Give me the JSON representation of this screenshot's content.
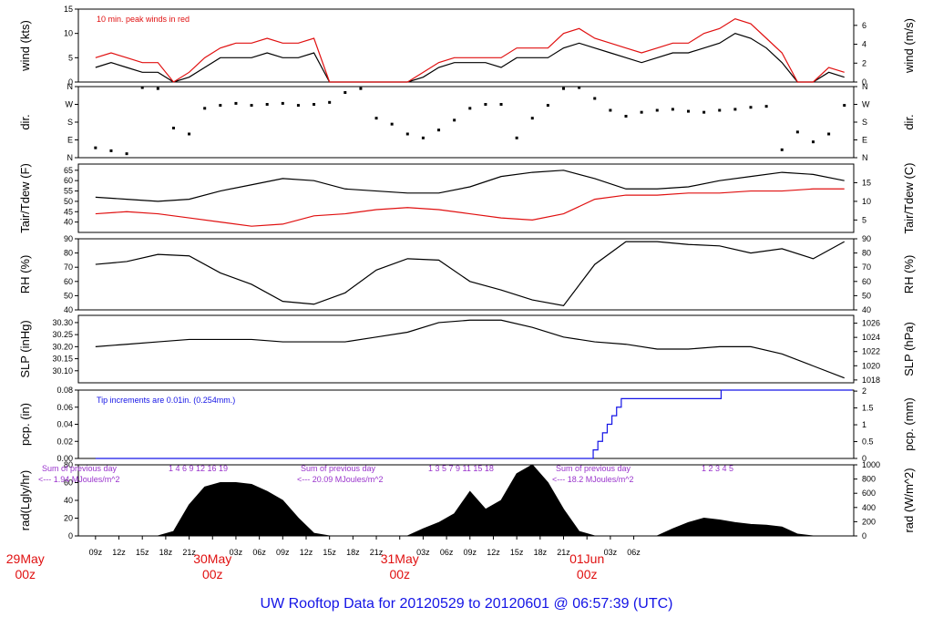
{
  "title": "UW Rooftop Data for 20120529  to  20120601 @ 06:57:39  (UTC)",
  "colors": {
    "black": "#000000",
    "red": "#e01010",
    "blue": "#1414e6",
    "purple": "#9933cc"
  },
  "x_hour_labels": [
    "09z",
    "12z",
    "15z",
    "18z",
    "21z",
    "30May",
    "03z",
    "06z",
    "09z",
    "12z",
    "15z",
    "18z",
    "21z",
    "31May",
    "03z",
    "06z",
    "09z",
    "12z",
    "15z",
    "18z",
    "21z",
    "01Jun",
    "03z",
    "06z"
  ],
  "day_labels": [
    {
      "name": "29May",
      "time": "00z"
    },
    {
      "name": "30May",
      "time": "00z"
    },
    {
      "name": "31May",
      "time": "00z"
    },
    {
      "name": "01Jun",
      "time": "00z"
    }
  ],
  "chart_data": [
    {
      "type": "line",
      "panel": "wind",
      "ylabel": "wind (kts)",
      "ylabel_right": "wind (m/s)",
      "ylim": [
        0,
        15
      ],
      "yticks": [
        0,
        5,
        10,
        15
      ],
      "ylim_right": [
        0,
        7.72
      ],
      "yticks_right": [
        0,
        2,
        4,
        6
      ],
      "annotation": "10 min. peak winds in red",
      "series": [
        {
          "name": "wind",
          "color": "#000000",
          "x": [
            0,
            2,
            4,
            6,
            8,
            10,
            12,
            14,
            16,
            18,
            20,
            22,
            24,
            26,
            28,
            30,
            32,
            34,
            36,
            38,
            40,
            42,
            44,
            46,
            48,
            50,
            52,
            54,
            56,
            58,
            60,
            62,
            64,
            66,
            68,
            70,
            72,
            74,
            76,
            78,
            80,
            82,
            84,
            86,
            88,
            90,
            92,
            94,
            96
          ],
          "y": [
            3,
            4,
            3,
            2,
            2,
            0,
            1,
            3,
            5,
            5,
            5,
            6,
            5,
            5,
            6,
            0,
            0,
            0,
            0,
            0,
            0,
            1,
            3,
            4,
            4,
            4,
            3,
            5,
            5,
            5,
            7,
            8,
            7,
            6,
            5,
            4,
            5,
            6,
            6,
            7,
            8,
            10,
            9,
            7,
            4,
            0,
            0,
            2,
            1
          ]
        },
        {
          "name": "peak",
          "color": "#e01010",
          "x": [
            0,
            2,
            4,
            6,
            8,
            10,
            12,
            14,
            16,
            18,
            20,
            22,
            24,
            26,
            28,
            30,
            32,
            34,
            36,
            38,
            40,
            42,
            44,
            46,
            48,
            50,
            52,
            54,
            56,
            58,
            60,
            62,
            64,
            66,
            68,
            70,
            72,
            74,
            76,
            78,
            80,
            82,
            84,
            86,
            88,
            90,
            92,
            94,
            96
          ],
          "y": [
            5,
            6,
            5,
            4,
            4,
            0,
            2,
            5,
            7,
            8,
            8,
            9,
            8,
            8,
            9,
            0,
            0,
            0,
            0,
            0,
            0,
            2,
            4,
            5,
            5,
            5,
            5,
            7,
            7,
            7,
            10,
            11,
            9,
            8,
            7,
            6,
            7,
            8,
            8,
            10,
            11,
            13,
            12,
            9,
            6,
            0,
            0,
            3,
            2
          ]
        }
      ]
    },
    {
      "type": "scatter",
      "panel": "dir",
      "ylabel": "dir.",
      "ylim": [
        0,
        360
      ],
      "yticklabels": [
        "N",
        "E",
        "S",
        "W",
        "N"
      ],
      "ytickvalues": [
        0,
        90,
        180,
        270,
        360
      ],
      "series": [
        {
          "name": "dir",
          "color": "#000000",
          "x": [
            0,
            2,
            4,
            6,
            8,
            10,
            12,
            14,
            16,
            18,
            20,
            22,
            24,
            26,
            28,
            30,
            32,
            34,
            36,
            38,
            40,
            42,
            44,
            46,
            48,
            50,
            52,
            54,
            56,
            58,
            60,
            62,
            64,
            66,
            68,
            70,
            72,
            74,
            76,
            78,
            80,
            82,
            84,
            86,
            88,
            90,
            92,
            94,
            96
          ],
          "y": [
            50,
            35,
            20,
            355,
            350,
            150,
            120,
            250,
            265,
            275,
            265,
            270,
            275,
            265,
            270,
            280,
            330,
            350,
            200,
            170,
            120,
            100,
            140,
            190,
            250,
            270,
            270,
            100,
            200,
            265,
            350,
            355,
            300,
            240,
            210,
            230,
            240,
            245,
            235,
            230,
            240,
            245,
            255,
            260,
            40,
            130,
            80,
            120,
            265
          ]
        }
      ]
    },
    {
      "type": "line",
      "panel": "temp",
      "ylabel": "Tair/Tdew (F)",
      "ylabel_right": "Tair/Tdew (C)",
      "ylim": [
        35,
        68
      ],
      "yticks": [
        40,
        45,
        50,
        55,
        60,
        65
      ],
      "ylim_right": [
        1.67,
        20
      ],
      "yticks_right": [
        5,
        10,
        15
      ],
      "series": [
        {
          "name": "Tair",
          "color": "#000000",
          "x": [
            0,
            4,
            8,
            12,
            16,
            20,
            24,
            28,
            32,
            36,
            40,
            44,
            48,
            52,
            56,
            60,
            64,
            68,
            72,
            76,
            80,
            84,
            88,
            92,
            96
          ],
          "y": [
            52,
            51,
            50,
            51,
            55,
            58,
            61,
            60,
            56,
            55,
            54,
            54,
            57,
            62,
            64,
            65,
            61,
            56,
            56,
            57,
            60,
            62,
            64,
            63,
            60
          ]
        },
        {
          "name": "Tdew",
          "color": "#e01010",
          "x": [
            0,
            4,
            8,
            12,
            16,
            20,
            24,
            28,
            32,
            36,
            40,
            44,
            48,
            52,
            56,
            60,
            64,
            68,
            72,
            76,
            80,
            84,
            88,
            92,
            96
          ],
          "y": [
            44,
            45,
            44,
            42,
            40,
            38,
            39,
            43,
            44,
            46,
            47,
            46,
            44,
            42,
            41,
            44,
            51,
            53,
            53,
            54,
            54,
            55,
            55,
            56,
            56
          ]
        }
      ]
    },
    {
      "type": "line",
      "panel": "rh",
      "ylabel": "RH (%)",
      "ylabel_right": "RH (%)",
      "ylim": [
        40,
        90
      ],
      "yticks": [
        40,
        50,
        60,
        70,
        80,
        90
      ],
      "ylim_right": [
        40,
        90
      ],
      "yticks_right": [
        40,
        50,
        60,
        70,
        80,
        90
      ],
      "series": [
        {
          "name": "RH",
          "color": "#000000",
          "x": [
            0,
            4,
            8,
            12,
            16,
            20,
            24,
            28,
            32,
            36,
            40,
            44,
            48,
            52,
            56,
            60,
            64,
            68,
            72,
            76,
            80,
            84,
            88,
            92,
            96
          ],
          "y": [
            72,
            74,
            79,
            78,
            66,
            58,
            46,
            44,
            52,
            68,
            76,
            75,
            60,
            54,
            47,
            43,
            72,
            88,
            88,
            86,
            85,
            80,
            83,
            76,
            88
          ]
        }
      ]
    },
    {
      "type": "line",
      "panel": "slp",
      "ylabel": "SLP (inHg)",
      "ylabel_right": "SLP (hPa)",
      "ylim": [
        30.05,
        30.33
      ],
      "yticks": [
        30.1,
        30.15,
        30.2,
        30.25,
        30.3
      ],
      "yticklabels": [
        "30.10",
        "30.15",
        "30.20",
        "30.25",
        "30.30"
      ],
      "ylim_right": [
        1017.6,
        1027.1
      ],
      "yticks_right": [
        1018,
        1020,
        1022,
        1024,
        1026
      ],
      "series": [
        {
          "name": "SLP",
          "color": "#000000",
          "x": [
            0,
            4,
            8,
            12,
            16,
            20,
            24,
            28,
            32,
            36,
            40,
            44,
            48,
            52,
            56,
            60,
            64,
            68,
            72,
            76,
            80,
            84,
            88,
            92,
            96
          ],
          "y": [
            30.2,
            30.21,
            30.22,
            30.23,
            30.23,
            30.23,
            30.22,
            30.22,
            30.22,
            30.24,
            30.26,
            30.3,
            30.31,
            30.31,
            30.28,
            30.24,
            30.22,
            30.21,
            30.19,
            30.19,
            30.2,
            30.2,
            30.17,
            30.12,
            30.07
          ]
        }
      ]
    },
    {
      "type": "line",
      "panel": "pcp",
      "ylabel": "pcp. (in)",
      "ylabel_right": "pcp. (mm)",
      "ylim": [
        0,
        0.08
      ],
      "yticks": [
        0,
        0.02,
        0.04,
        0.06,
        0.08
      ],
      "yticklabels": [
        "0.00",
        "0.02",
        "0.04",
        "0.06",
        "0.08"
      ],
      "ylim_right": [
        0,
        2.03
      ],
      "yticks_right": [
        0,
        0.5,
        1,
        1.5,
        2
      ],
      "annotation": "Tip increments are 0.01in. (0.254mm.)",
      "series": [
        {
          "name": "pcp",
          "color": "#1414e6",
          "x": [
            0,
            63,
            63.8,
            64.4,
            65.0,
            65.6,
            66.2,
            66.8,
            67.4,
            80,
            80.2,
            97
          ],
          "y": [
            0,
            0,
            0.01,
            0.02,
            0.03,
            0.04,
            0.05,
            0.06,
            0.07,
            0.07,
            0.08,
            0.08
          ]
        }
      ]
    },
    {
      "type": "area",
      "panel": "rad",
      "ylabel": "rad(Lgly/hr)",
      "ylabel_right": "rad (W/m^2)",
      "ylim": [
        0,
        80
      ],
      "yticks": [
        0,
        20,
        40,
        60,
        80
      ],
      "ylim_right": [
        0,
        1000
      ],
      "yticks_right": [
        0,
        200,
        400,
        600,
        800,
        1000
      ],
      "series": [
        {
          "name": "rad",
          "color": "#000000",
          "x": [
            0,
            2,
            4,
            6,
            8,
            10,
            12,
            14,
            16,
            18,
            20,
            22,
            24,
            26,
            28,
            30,
            32,
            34,
            36,
            38,
            40,
            42,
            44,
            46,
            48,
            50,
            52,
            54,
            56,
            58,
            60,
            62,
            64,
            66,
            68,
            70,
            72,
            74,
            76,
            78,
            80,
            82,
            84,
            86,
            88,
            90,
            92,
            94,
            96
          ],
          "y": [
            0,
            0,
            0,
            0,
            0,
            5,
            35,
            55,
            60,
            60,
            58,
            50,
            40,
            20,
            3,
            0,
            0,
            0,
            0,
            0,
            0,
            8,
            15,
            25,
            50,
            30,
            40,
            70,
            80,
            60,
            30,
            5,
            0,
            0,
            0,
            0,
            0,
            8,
            15,
            20,
            18,
            15,
            13,
            12,
            10,
            2,
            0,
            0,
            0
          ]
        }
      ],
      "sum_labels": [
        {
          "title": "Sum of previous day",
          "text": "<--- 1.94 MJoules/m^2",
          "hours": "1  4  6  9 12 16 19"
        },
        {
          "title": "Sum of previous day",
          "text": "<--- 20.09 MJoules/m^2",
          "hours": "1  3  5  7  9 11 15 18"
        },
        {
          "title": "Sum of previous day",
          "text": "<--- 18.2 MJoules/m^2",
          "hours": "1  2  3  4  5"
        }
      ]
    }
  ]
}
